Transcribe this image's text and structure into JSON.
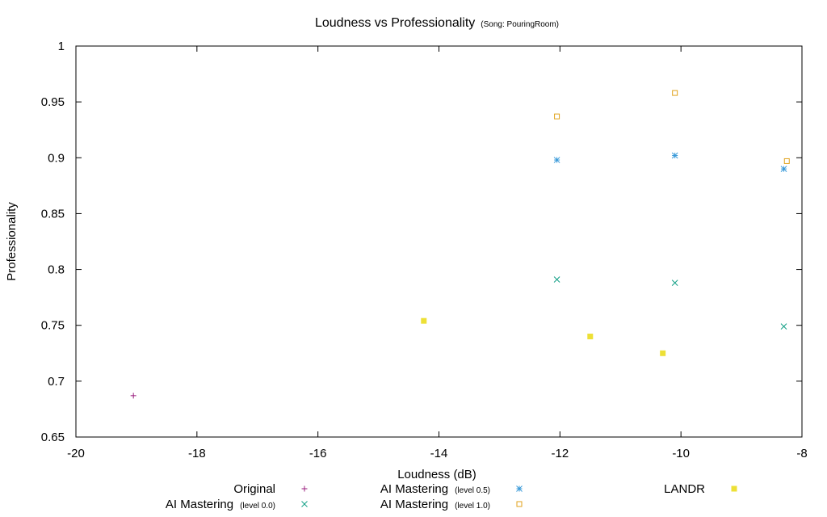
{
  "chart_data": {
    "type": "scatter",
    "title": "Loudness vs Professionality",
    "subtitle": "(Song: PouringRoom)",
    "xlabel": "Loudness (dB)",
    "ylabel": "Professionality",
    "xlim": [
      -20,
      -8
    ],
    "ylim": [
      0.65,
      1.0
    ],
    "x_ticks": [
      -20,
      -18,
      -16,
      -14,
      -12,
      -10,
      -8
    ],
    "y_ticks": [
      0.65,
      0.7,
      0.75,
      0.8,
      0.85,
      0.9,
      0.95,
      1.0
    ],
    "x_tick_labels": [
      "-20",
      "-18",
      "-16",
      "-14",
      "-12",
      "-10",
      "-8"
    ],
    "y_tick_labels": [
      "0.65",
      "0.7",
      "0.75",
      "0.8",
      "0.85",
      "0.9",
      "0.95",
      "1"
    ],
    "grid": false,
    "legend_position": "bottom",
    "series": [
      {
        "name": "Original",
        "name_suffix": "",
        "marker": "plus",
        "color": "#9b1f7f",
        "points": [
          [
            -19.05,
            0.687
          ]
        ]
      },
      {
        "name": "AI Mastering",
        "name_suffix": "(level 0.0)",
        "marker": "cross",
        "color": "#15a087",
        "points": [
          [
            -12.05,
            0.791
          ],
          [
            -10.1,
            0.788
          ],
          [
            -8.3,
            0.749
          ]
        ]
      },
      {
        "name": "AI Mastering",
        "name_suffix": "(level 0.5)",
        "marker": "star",
        "color": "#3a9ad9",
        "points": [
          [
            -12.05,
            0.898
          ],
          [
            -10.1,
            0.902
          ],
          [
            -8.3,
            0.89
          ]
        ]
      },
      {
        "name": "AI Mastering",
        "name_suffix": "(level 1.0)",
        "marker": "square-open",
        "color": "#e0a21b",
        "points": [
          [
            -12.05,
            0.937
          ],
          [
            -10.1,
            0.958
          ],
          [
            -8.25,
            0.897
          ]
        ]
      },
      {
        "name": "LANDR",
        "name_suffix": "",
        "marker": "square-filled",
        "color": "#ede036",
        "points": [
          [
            -14.25,
            0.754
          ],
          [
            -11.5,
            0.74
          ],
          [
            -10.3,
            0.725
          ]
        ]
      }
    ]
  }
}
